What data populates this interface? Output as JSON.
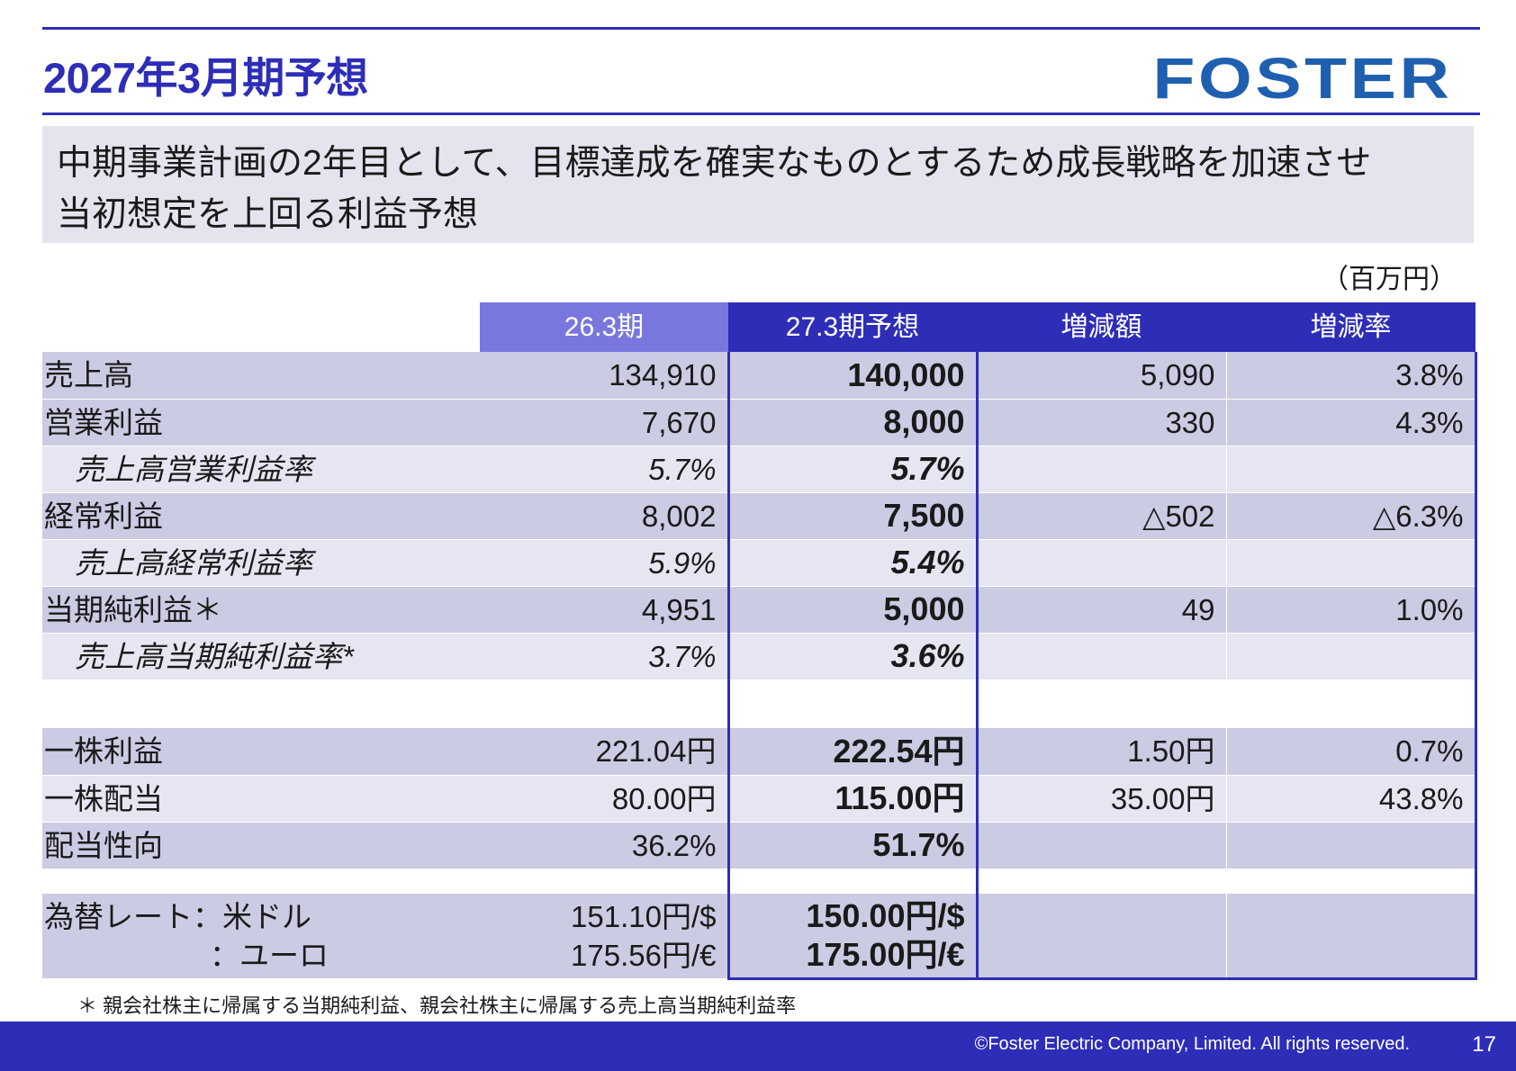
{
  "header": {
    "title": "2027年3月期予想",
    "logo": "FOSTER"
  },
  "subtitle": {
    "line1": "中期事業計画の2年目として、目標達成を確実なものとするため成長戦略を加速させ",
    "line2": "当初想定を上回る利益予想"
  },
  "unit": "（百万円）",
  "table": {
    "columns": [
      "26.3期",
      "27.3期予想",
      "増減額",
      "増減率"
    ],
    "rows": [
      {
        "label": "売上高",
        "prev": "134,910",
        "forecast": "140,000",
        "diff": "5,090",
        "rate": "3.8%"
      },
      {
        "label": "営業利益",
        "prev": "7,670",
        "forecast": "8,000",
        "diff": "330",
        "rate": "4.3%"
      },
      {
        "label": "売上高営業利益率",
        "prev": "5.7%",
        "forecast": "5.7%",
        "diff": "",
        "rate": ""
      },
      {
        "label": "経常利益",
        "prev": "8,002",
        "forecast": "7,500",
        "diff": "△502",
        "rate": "△6.3%"
      },
      {
        "label": "売上高経常利益率",
        "prev": "5.9%",
        "forecast": "5.4%",
        "diff": "",
        "rate": ""
      },
      {
        "label": "当期純利益＊",
        "prev": "4,951",
        "forecast": "5,000",
        "diff": "49",
        "rate": "1.0%"
      },
      {
        "label": "売上高当期純利益率*",
        "prev": "3.7%",
        "forecast": "3.6%",
        "diff": "",
        "rate": ""
      }
    ],
    "rows2": [
      {
        "label": "一株利益",
        "prev": "221.04円",
        "forecast": "222.54円",
        "diff": "1.50円",
        "rate": "0.7%"
      },
      {
        "label": "一株配当",
        "prev": "80.00円",
        "forecast": "115.00円",
        "diff": "35.00円",
        "rate": "43.8%"
      },
      {
        "label": "配当性向",
        "prev": "36.2%",
        "forecast": "51.7%",
        "diff": "",
        "rate": ""
      }
    ],
    "fx": {
      "label_usd": "為替レート：米ドル",
      "label_eur": "：ユーロ",
      "prev_usd": "151.10円/$",
      "prev_eur": "175.56円/€",
      "forecast_usd": "150.00円/$",
      "forecast_eur": "175.00円/€"
    }
  },
  "footnote": "＊ 親会社株主に帰属する当期純利益、親会社株主に帰属する売上高当期純利益率",
  "footer": {
    "copyright": "©Foster Electric Company, Limited. All rights reserved.",
    "page_number": "17"
  },
  "colors": {
    "accent": "#2d2db8",
    "header_light": "#7777de",
    "row_dark": "#cbcbe3",
    "row_light": "#e6e6f3",
    "logo": "#1f5fb0"
  }
}
